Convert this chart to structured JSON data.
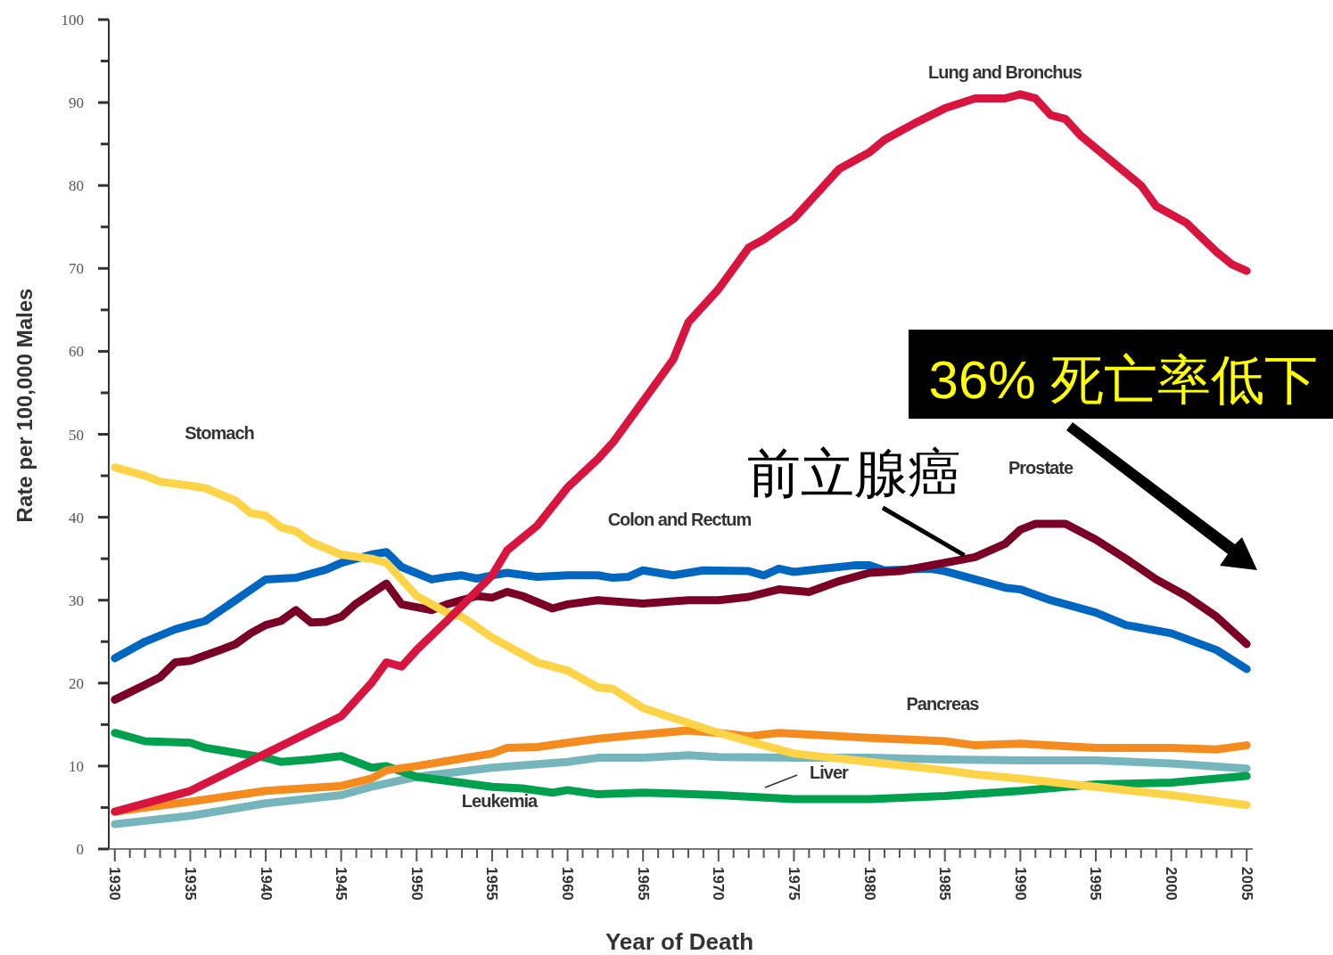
{
  "chart_data": {
    "type": "line",
    "xlabel": "Year of Death",
    "ylabel": "Rate per 100,000 Males",
    "xlim": [
      1929.6,
      2005.4
    ],
    "ylim": [
      0,
      100
    ],
    "xticks": [
      1930,
      {
        "value": 1931,
        "label": null
      },
      {
        "value": 1932,
        "label": null
      },
      {
        "value": 1933,
        "label": null
      },
      {
        "value": 1934,
        "label": null
      },
      1935,
      {
        "value": 1936,
        "label": null
      },
      {
        "value": 1937,
        "label": null
      },
      {
        "value": 1938,
        "label": null
      },
      {
        "value": 1939,
        "label": null
      },
      1940,
      {
        "value": 1941,
        "label": null
      },
      {
        "value": 1942,
        "label": null
      },
      {
        "value": 1943,
        "label": null
      },
      {
        "value": 1944,
        "label": null
      },
      1945,
      {
        "value": 1946,
        "label": null
      },
      {
        "value": 1947,
        "label": null
      },
      {
        "value": 1948,
        "label": null
      },
      {
        "value": 1949,
        "label": null
      },
      1950,
      {
        "value": 1951,
        "label": null
      },
      {
        "value": 1952,
        "label": null
      },
      {
        "value": 1953,
        "label": null
      },
      {
        "value": 1954,
        "label": null
      },
      1955,
      {
        "value": 1956,
        "label": null
      },
      {
        "value": 1957,
        "label": null
      },
      {
        "value": 1958,
        "label": null
      },
      {
        "value": 1959,
        "label": null
      },
      1960,
      {
        "value": 1961,
        "label": null
      },
      {
        "value": 1962,
        "label": null
      },
      {
        "value": 1963,
        "label": null
      },
      {
        "value": 1964,
        "label": null
      },
      1965,
      {
        "value": 1966,
        "label": null
      },
      {
        "value": 1967,
        "label": null
      },
      {
        "value": 1968,
        "label": null
      },
      {
        "value": 1969,
        "label": null
      },
      1970,
      {
        "value": 1971,
        "label": null
      },
      {
        "value": 1972,
        "label": null
      },
      {
        "value": 1973,
        "label": null
      },
      {
        "value": 1974,
        "label": null
      },
      1975,
      {
        "value": 1976,
        "label": null
      },
      {
        "value": 1977,
        "label": null
      },
      {
        "value": 1978,
        "label": null
      },
      {
        "value": 1979,
        "label": null
      },
      1980,
      {
        "value": 1981,
        "label": null
      },
      {
        "value": 1982,
        "label": null
      },
      {
        "value": 1983,
        "label": null
      },
      {
        "value": 1984,
        "label": null
      },
      1985,
      {
        "value": 1986,
        "label": null
      },
      {
        "value": 1987,
        "label": null
      },
      {
        "value": 1988,
        "label": null
      },
      {
        "value": 1989,
        "label": null
      },
      1990,
      {
        "value": 1991,
        "label": null
      },
      {
        "value": 1992,
        "label": null
      },
      {
        "value": 1993,
        "label": null
      },
      {
        "value": 1994,
        "label": null
      },
      1995,
      {
        "value": 1996,
        "label": null
      },
      {
        "value": 1997,
        "label": null
      },
      {
        "value": 1998,
        "label": null
      },
      {
        "value": 1999,
        "label": null
      },
      2000,
      {
        "value": 2001,
        "label": null
      },
      {
        "value": 2002,
        "label": null
      },
      {
        "value": 2003,
        "label": null
      },
      {
        "value": 2004,
        "label": null
      },
      2005
    ],
    "yticks": [
      0,
      {
        "value": 5,
        "label": null
      },
      10,
      {
        "value": 15,
        "label": null
      },
      20,
      {
        "value": 25,
        "label": null
      },
      30,
      {
        "value": 35,
        "label": null
      },
      40,
      {
        "value": 45,
        "label": null
      },
      50,
      {
        "value": 55,
        "label": null
      },
      60,
      {
        "value": 65,
        "label": null
      },
      70,
      {
        "value": 75,
        "label": null
      },
      80,
      {
        "value": 85,
        "label": null
      },
      90,
      {
        "value": 95,
        "label": null
      },
      100
    ],
    "grid": false,
    "legend": false,
    "marker": "none",
    "line_style": "solid",
    "series": [
      {
        "name": "Liver",
        "color": "#77b5bd",
        "x": [
          1930,
          1935,
          1940,
          1945,
          1947,
          1950,
          1955,
          1960,
          1962,
          1965,
          1968,
          1970,
          1975,
          1980,
          1985,
          1990,
          1995,
          2000,
          2005
        ],
        "values": [
          3,
          4,
          5.5,
          6.5,
          7.5,
          8.7,
          9.8,
          10.5,
          11,
          11,
          11.3,
          11.1,
          11,
          11,
          10.8,
          10.7,
          10.7,
          10.3,
          9.7
        ]
      },
      {
        "name": "Leukemia",
        "color": "#00a04e",
        "x": [
          1930,
          1932,
          1935,
          1936,
          1940,
          1941,
          1943,
          1945,
          1947,
          1948,
          1950,
          1955,
          1957,
          1959,
          1960,
          1962,
          1965,
          1970,
          1975,
          1980,
          1985,
          1990,
          1993,
          1995,
          2000,
          2005
        ],
        "values": [
          14,
          13,
          12.8,
          12.2,
          11,
          10.5,
          10.8,
          11.2,
          9.8,
          10,
          8.7,
          7.5,
          7.3,
          6.8,
          7.1,
          6.6,
          6.8,
          6.5,
          6,
          6,
          6.4,
          7,
          7.5,
          7.8,
          8,
          8.8
        ]
      },
      {
        "name": "Pancreas",
        "color": "#f38b1e",
        "x": [
          1930,
          1935,
          1940,
          1945,
          1947,
          1948,
          1950,
          1955,
          1956,
          1958,
          1960,
          1962,
          1965,
          1968,
          1970,
          1972,
          1974,
          1976,
          1980,
          1985,
          1987,
          1990,
          1995,
          2000,
          2003,
          2005
        ],
        "values": [
          4.5,
          5.7,
          7,
          7.6,
          8.5,
          9.5,
          10,
          11.5,
          12.2,
          12.3,
          12.8,
          13.3,
          13.8,
          14.3,
          14,
          13.6,
          14,
          13.8,
          13.4,
          13,
          12.5,
          12.7,
          12.2,
          12.2,
          12,
          12.5
        ]
      },
      {
        "name": "Colon and Rectum",
        "color": "#0066bf",
        "x": [
          1930,
          1932,
          1934,
          1935,
          1936,
          1938,
          1940,
          1942,
          1944,
          1945,
          1946,
          1947,
          1948,
          1949,
          1951,
          1952,
          1953,
          1954,
          1955,
          1956,
          1958,
          1960,
          1962,
          1963,
          1964,
          1965,
          1967,
          1969,
          1972,
          1973,
          1974,
          1975,
          1977,
          1979,
          1980,
          1981,
          1984,
          1985,
          1987,
          1989,
          1990,
          1992,
          1995,
          1997,
          2000,
          2003,
          2005
        ],
        "values": [
          23,
          25,
          26.5,
          27,
          27.5,
          30,
          32.5,
          32.7,
          33.7,
          34.5,
          35,
          35.5,
          35.8,
          34,
          32.5,
          32.8,
          33,
          32.6,
          33,
          33.3,
          32.8,
          33,
          33,
          32.7,
          32.8,
          33.6,
          33,
          33.6,
          33.5,
          33,
          33.8,
          33.4,
          33.8,
          34.2,
          34.2,
          33.6,
          33.8,
          33.5,
          32.5,
          31.5,
          31.3,
          30,
          28.5,
          27,
          26,
          24,
          21.7
        ]
      },
      {
        "name": "Prostate",
        "color": "#7a0026",
        "x": [
          1930,
          1932,
          1933,
          1934,
          1935,
          1937,
          1938,
          1939,
          1940,
          1941,
          1942,
          1943,
          1944,
          1945,
          1946,
          1947,
          1948,
          1949,
          1951,
          1952,
          1953,
          1954,
          1955,
          1956,
          1957,
          1959,
          1960,
          1962,
          1965,
          1968,
          1970,
          1972,
          1974,
          1976,
          1978,
          1980,
          1982,
          1985,
          1987,
          1989,
          1990,
          1991,
          1993,
          1995,
          1997,
          1999,
          2001,
          2003,
          2005
        ],
        "values": [
          18,
          19.8,
          20.7,
          22.5,
          22.7,
          24,
          24.7,
          26,
          27,
          27.5,
          28.8,
          27.3,
          27.4,
          28,
          29.6,
          30.8,
          32,
          29.5,
          28.8,
          29.5,
          30,
          30.5,
          30.3,
          31,
          30.5,
          29,
          29.5,
          30,
          29.6,
          30,
          30,
          30.4,
          31.3,
          31,
          32.3,
          33.3,
          33.5,
          34.5,
          35.2,
          36.8,
          38.5,
          39.2,
          39.2,
          37.3,
          35,
          32.5,
          30.5,
          28,
          24.7
        ]
      },
      {
        "name": "Stomach",
        "color": "#fdd447",
        "x": [
          1930,
          1932,
          1933,
          1935,
          1936,
          1938,
          1939,
          1940,
          1941,
          1942,
          1943,
          1945,
          1947,
          1948,
          1950,
          1952,
          1953,
          1955,
          1957,
          1958,
          1960,
          1962,
          1963,
          1965,
          1967,
          1970,
          1973,
          1975,
          1980,
          1985,
          1987,
          1990,
          1995,
          2000,
          2005
        ],
        "values": [
          46,
          45,
          44.3,
          43.8,
          43.5,
          42,
          40.5,
          40.2,
          38.8,
          38.3,
          37,
          35.5,
          35,
          34.5,
          30.5,
          28.5,
          28,
          25.5,
          23.5,
          22.5,
          21.5,
          19.5,
          19.3,
          17,
          15.8,
          14,
          12.5,
          11.5,
          10.5,
          9.5,
          9,
          8.5,
          7.5,
          6.5,
          5.3
        ]
      },
      {
        "name": "Lung and Bronchus",
        "color": "#d7153e",
        "x": [
          1930,
          1935,
          1940,
          1945,
          1947,
          1948,
          1949,
          1950,
          1952,
          1955,
          1956,
          1958,
          1960,
          1962,
          1963,
          1965,
          1967,
          1968,
          1970,
          1972,
          1973,
          1975,
          1977,
          1978,
          1979,
          1980,
          1981,
          1983,
          1985,
          1987,
          1989,
          1990,
          1991,
          1992,
          1993,
          1994,
          1996,
          1998,
          1999,
          2000,
          2001,
          2003,
          2004,
          2005
        ],
        "values": [
          4.5,
          7,
          11.5,
          16,
          20,
          22.5,
          22,
          24,
          27.5,
          33,
          36,
          39,
          43.6,
          47,
          49,
          54,
          59,
          63.5,
          67.5,
          72.5,
          73.5,
          76,
          80,
          82,
          83,
          84,
          85.5,
          87.5,
          89.3,
          90.5,
          90.5,
          91,
          90.5,
          88.5,
          88,
          86,
          83,
          80,
          77.5,
          76.5,
          75.5,
          72,
          70.5,
          69.7
        ]
      }
    ],
    "annotations": [
      {
        "text": "前立腺癌",
        "x": 1987,
        "y": 35.2
      },
      "36% 死亡率低下"
    ]
  }
}
